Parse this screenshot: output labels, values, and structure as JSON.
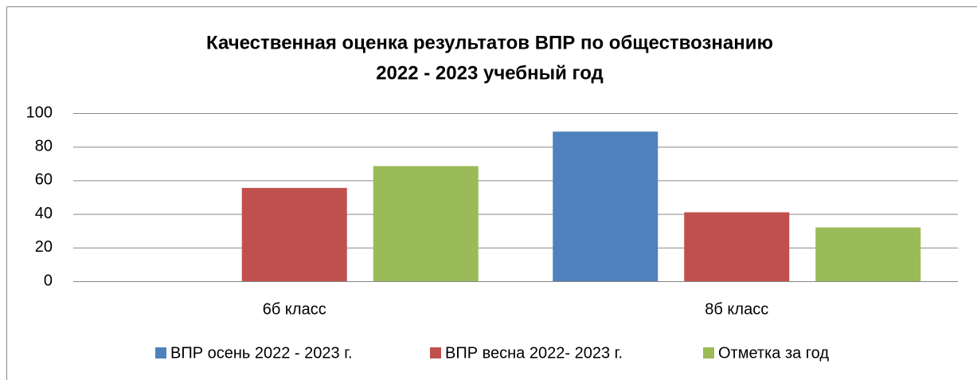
{
  "chart_data": {
    "type": "bar",
    "title": [
      "Качественная оценка результатов ВПР по обществознанию",
      "2022 - 2023 учебный год"
    ],
    "categories": [
      "6б класс",
      "8б класс"
    ],
    "series": [
      {
        "name": "ВПР осень 2022 - 2023 г.",
        "color": "#4f81bd",
        "values": [
          null,
          89
        ]
      },
      {
        "name": "ВПР весна 2022- 2023 г.",
        "color": "#c0504d",
        "values": [
          55.5,
          41
        ]
      },
      {
        "name": "Отметка за год",
        "color": "#9bbb59",
        "values": [
          68.5,
          32
        ]
      }
    ],
    "ylim": [
      0,
      100
    ],
    "yticks": [
      0,
      20,
      40,
      60,
      80,
      100
    ],
    "grid": true,
    "legend": "bottom"
  }
}
